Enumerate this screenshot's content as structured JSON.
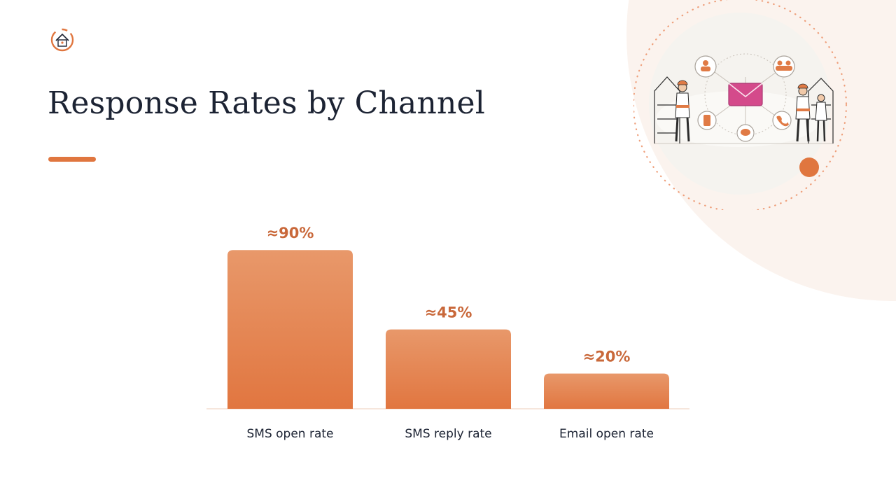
{
  "slide": {
    "title": "Response Rates by Channel",
    "accent_color": "#e0763f",
    "title_color": "#1c2333",
    "background_accent": "#fbf3ee"
  },
  "logo": {
    "icon": "house-circle-logo-icon"
  },
  "illustration": {
    "icon": "workers-communication-network-illustration"
  },
  "chart_data": {
    "type": "bar",
    "categories": [
      "SMS open rate",
      "SMS reply rate",
      "Email open rate"
    ],
    "values": [
      90,
      45,
      20
    ],
    "data_labels": [
      "≈90%",
      "≈45%",
      "≈20%"
    ],
    "title": "",
    "xlabel": "",
    "ylabel": "",
    "ylim": [
      0,
      100
    ],
    "grid": false,
    "legend": "none",
    "bar_color_top": "#e8986a",
    "bar_color_bottom": "#e17640",
    "label_color": "#c9683a"
  }
}
